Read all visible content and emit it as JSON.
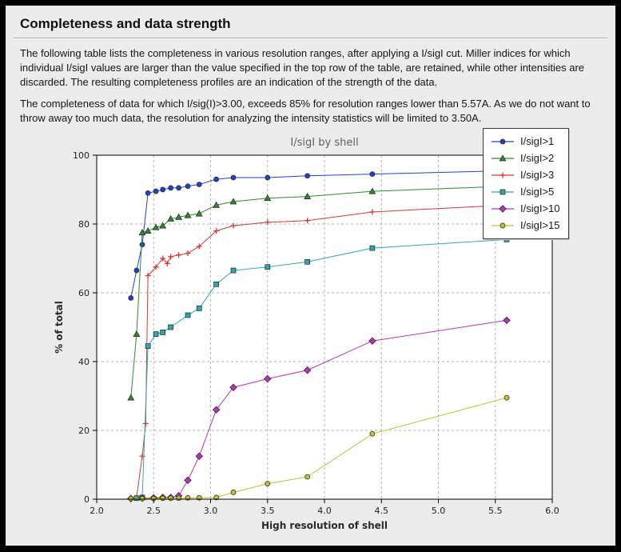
{
  "header": {
    "title": "Completeness and data strength"
  },
  "body": {
    "paragraphs": [
      "The following table lists the completeness in various resolution ranges, after applying a I/sigI cut. Miller indices for which individual I/sigI values are larger than the value specified in the top row of the table, are retained, while other intensities are discarded. The resulting completeness profiles are an indication of the strength of the data.",
      "The completeness of data for which I/sig(I)>3.00, exceeds  85% for resolution ranges lower than 5.57A. As we do not want to throw away too much data, the resolution for analyzing the intensity statistics will be limited to 3.50A."
    ]
  },
  "chart_data": {
    "type": "line",
    "title": "I/sigI by shell",
    "xlabel": "High resolution of shell",
    "ylabel": "% of total",
    "xlim": [
      2.0,
      6.0
    ],
    "ylim": [
      0,
      100
    ],
    "xticks": [
      2.0,
      2.5,
      3.0,
      3.5,
      4.0,
      4.5,
      5.0,
      5.5,
      6.0
    ],
    "yticks": [
      0,
      20,
      40,
      60,
      80,
      100
    ],
    "grid": true,
    "legend_position": "top-right",
    "series": [
      {
        "name": "I/sigI>1",
        "color": "#2142c7",
        "marker": "circle",
        "points": [
          [
            2.3,
            58.5
          ],
          [
            2.35,
            66.5
          ],
          [
            2.4,
            74.0
          ],
          [
            2.45,
            89.0
          ],
          [
            2.52,
            89.5
          ],
          [
            2.58,
            90.0
          ],
          [
            2.65,
            90.5
          ],
          [
            2.72,
            90.5
          ],
          [
            2.8,
            91.0
          ],
          [
            2.9,
            91.5
          ],
          [
            3.05,
            93.0
          ],
          [
            3.2,
            93.5
          ],
          [
            3.5,
            93.5
          ],
          [
            3.85,
            94.0
          ],
          [
            4.42,
            94.5
          ],
          [
            5.6,
            95.5
          ]
        ]
      },
      {
        "name": "I/sigI>2",
        "color": "#2e8b2e",
        "marker": "triangle",
        "points": [
          [
            2.3,
            29.5
          ],
          [
            2.35,
            48.0
          ],
          [
            2.4,
            77.5
          ],
          [
            2.45,
            78.0
          ],
          [
            2.52,
            79.0
          ],
          [
            2.58,
            79.5
          ],
          [
            2.65,
            81.5
          ],
          [
            2.72,
            82.0
          ],
          [
            2.8,
            82.5
          ],
          [
            2.9,
            83.0
          ],
          [
            3.05,
            85.5
          ],
          [
            3.2,
            86.5
          ],
          [
            3.5,
            87.5
          ],
          [
            3.85,
            88.0
          ],
          [
            4.42,
            89.5
          ],
          [
            5.6,
            91.0
          ]
        ]
      },
      {
        "name": "I/sigI>3",
        "color": "#d03a34",
        "marker": "plus",
        "points": [
          [
            2.3,
            0.3
          ],
          [
            2.35,
            0.5
          ],
          [
            2.4,
            12.5
          ],
          [
            2.43,
            22.0
          ],
          [
            2.45,
            65.0
          ],
          [
            2.52,
            67.5
          ],
          [
            2.58,
            70.0
          ],
          [
            2.62,
            68.5
          ],
          [
            2.65,
            70.5
          ],
          [
            2.72,
            71.0
          ],
          [
            2.8,
            71.5
          ],
          [
            2.9,
            73.5
          ],
          [
            3.05,
            78.0
          ],
          [
            3.2,
            79.5
          ],
          [
            3.5,
            80.5
          ],
          [
            3.85,
            81.0
          ],
          [
            4.42,
            83.5
          ],
          [
            5.6,
            85.5
          ]
        ]
      },
      {
        "name": "I/sigI>5",
        "color": "#2fa8ad",
        "marker": "square",
        "points": [
          [
            2.35,
            0.3
          ],
          [
            2.4,
            0.5
          ],
          [
            2.45,
            44.5
          ],
          [
            2.52,
            48.0
          ],
          [
            2.58,
            48.5
          ],
          [
            2.65,
            50.0
          ],
          [
            2.8,
            53.5
          ],
          [
            2.9,
            55.5
          ],
          [
            3.05,
            62.5
          ],
          [
            3.2,
            66.5
          ],
          [
            3.5,
            67.5
          ],
          [
            3.85,
            69.0
          ],
          [
            4.42,
            73.0
          ],
          [
            5.6,
            75.5
          ]
        ]
      },
      {
        "name": "I/sigI>10",
        "color": "#b635b6",
        "marker": "diamond",
        "points": [
          [
            2.3,
            0.2
          ],
          [
            2.4,
            0.3
          ],
          [
            2.5,
            0.4
          ],
          [
            2.58,
            0.5
          ],
          [
            2.65,
            0.5
          ],
          [
            2.72,
            1.0
          ],
          [
            2.8,
            5.5
          ],
          [
            2.9,
            12.5
          ],
          [
            3.05,
            26.0
          ],
          [
            3.2,
            32.5
          ],
          [
            3.5,
            35.0
          ],
          [
            3.85,
            37.5
          ],
          [
            4.42,
            46.0
          ],
          [
            5.6,
            52.0
          ]
        ]
      },
      {
        "name": "I/sigI>15",
        "color": "#c2c22e",
        "marker": "circle",
        "points": [
          [
            2.3,
            0.2
          ],
          [
            2.4,
            0.2
          ],
          [
            2.5,
            0.2
          ],
          [
            2.58,
            0.3
          ],
          [
            2.65,
            0.3
          ],
          [
            2.72,
            0.3
          ],
          [
            2.8,
            0.4
          ],
          [
            2.9,
            0.4
          ],
          [
            3.05,
            0.5
          ],
          [
            3.2,
            2.0
          ],
          [
            3.5,
            4.5
          ],
          [
            3.85,
            6.5
          ],
          [
            4.42,
            19.0
          ],
          [
            5.6,
            29.5
          ]
        ]
      }
    ]
  }
}
